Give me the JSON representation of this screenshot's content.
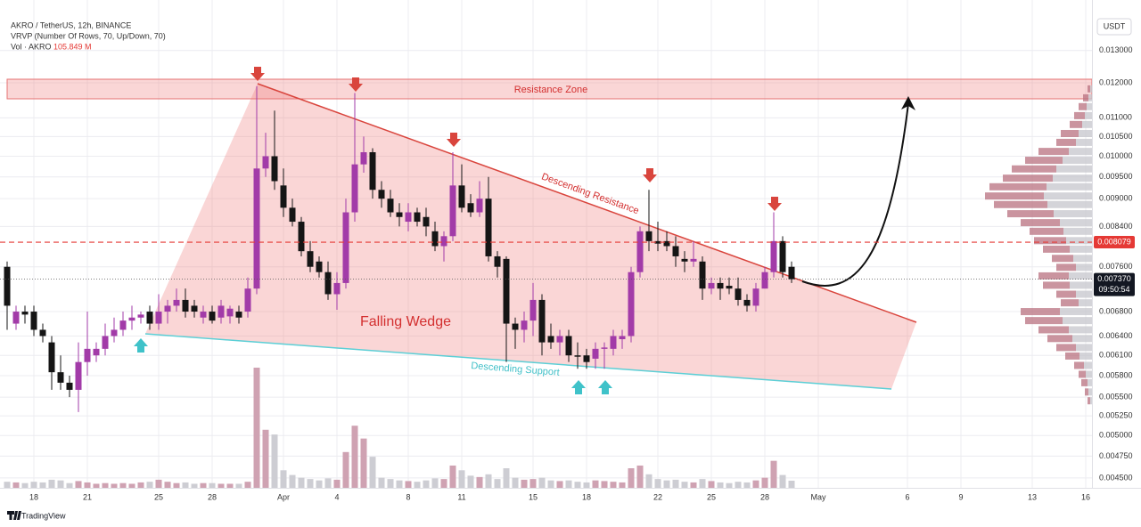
{
  "chart_data": {
    "type": "candlestick",
    "header": [
      "AKRO / TetherUS, 12h, BINANCE",
      "VRVP (Number Of Rows, 70, Up/Down, 70)"
    ],
    "volume_label": "Vol · AKRO",
    "volume_last_label": "105.849 M",
    "currency": "USDT",
    "footer": "TradingView",
    "annotations": [
      "Resistance Zone",
      "Descending Resistance",
      "Falling Wedge",
      "Descending Support"
    ],
    "log_scale": true,
    "grid": true,
    "up_color": "#a23ba8",
    "down_color": "#151515",
    "volume_up_color": "#cfa2b2",
    "volume_down_color": "#cdcdd3",
    "ylim": [
      0.00442,
      0.0141
    ],
    "yticks": [
      {
        "value": 0.013,
        "label": "0.013000"
      },
      {
        "value": 0.012,
        "label": "0.012000"
      },
      {
        "value": 0.011,
        "label": "0.011000"
      },
      {
        "value": 0.0105,
        "label": "0.010500"
      },
      {
        "value": 0.01,
        "label": "0.010000"
      },
      {
        "value": 0.0095,
        "label": "0.009500"
      },
      {
        "value": 0.009,
        "label": "0.009000"
      },
      {
        "value": 0.0084,
        "label": "0.008400"
      },
      {
        "value": 0.0076,
        "label": "0.007600"
      },
      {
        "value": 0.0068,
        "label": "0.006800"
      },
      {
        "value": 0.0064,
        "label": "0.006400"
      },
      {
        "value": 0.0061,
        "label": "0.006100"
      },
      {
        "value": 0.0058,
        "label": "0.005800"
      },
      {
        "value": 0.0055,
        "label": "0.005500"
      },
      {
        "value": 0.00525,
        "label": "0.005250"
      },
      {
        "value": 0.005,
        "label": "0.005000"
      },
      {
        "value": 0.00475,
        "label": "0.004750"
      },
      {
        "value": 0.0045,
        "label": "0.004500"
      }
    ],
    "xlim": [
      -0.8,
      121.7
    ],
    "xticks": [
      {
        "value": 3,
        "label": "18"
      },
      {
        "value": 9,
        "label": "21"
      },
      {
        "value": 17,
        "label": "25"
      },
      {
        "value": 23,
        "label": "28"
      },
      {
        "value": 31,
        "label": "Apr"
      },
      {
        "value": 37,
        "label": "4"
      },
      {
        "value": 45,
        "label": "8"
      },
      {
        "value": 51,
        "label": "11"
      },
      {
        "value": 59,
        "label": "15"
      },
      {
        "value": 65,
        "label": "18"
      },
      {
        "value": 73,
        "label": "22"
      },
      {
        "value": 79,
        "label": "25"
      },
      {
        "value": 85,
        "label": "28"
      },
      {
        "value": 91,
        "label": "May"
      },
      {
        "value": 101,
        "label": "6"
      },
      {
        "value": 107,
        "label": "9"
      },
      {
        "value": 115,
        "label": "13"
      },
      {
        "value": 121,
        "label": "16"
      }
    ],
    "open": [
      0.0076,
      0.0066,
      0.0068,
      0.0068,
      0.0065,
      0.0063,
      0.00585,
      0.0057,
      0.0056,
      0.006,
      0.0061,
      0.0062,
      0.0064,
      0.0065,
      0.00665,
      0.0067,
      0.0068,
      0.0066,
      0.0068,
      0.0069,
      0.007,
      0.0069,
      0.0067,
      0.0068,
      0.0067,
      0.00672,
      0.0068,
      0.0068,
      0.0072,
      0.0097,
      0.01,
      0.0093,
      0.0088,
      0.0085,
      0.0079,
      0.0077,
      0.0075,
      0.0071,
      0.0073,
      0.0087,
      0.0098,
      0.0101,
      0.0092,
      0.009,
      0.0087,
      0.0085,
      0.0087,
      0.0086,
      0.0083,
      0.008,
      0.0082,
      0.0093,
      0.0089,
      0.0087,
      0.009,
      0.0078,
      0.00775,
      0.0066,
      0.0065,
      0.00665,
      0.007,
      0.0064,
      0.0063,
      0.0064,
      0.0061,
      0.0061,
      0.00605,
      0.0062,
      0.0062,
      0.00635,
      0.0064,
      0.0075,
      0.0083,
      0.0081,
      0.0081,
      0.008,
      0.00775,
      0.0077,
      0.0077,
      0.0072,
      0.0073,
      0.00725,
      0.0072,
      0.007,
      0.0069,
      0.0072,
      0.0075,
      0.0081,
      0.0076
    ],
    "high": [
      0.0077,
      0.0069,
      0.0069,
      0.0069,
      0.0066,
      0.0064,
      0.0061,
      0.0058,
      0.0063,
      0.0068,
      0.0063,
      0.0066,
      0.0067,
      0.0068,
      0.0069,
      0.0068,
      0.0069,
      0.0071,
      0.007,
      0.0072,
      0.0072,
      0.007,
      0.0069,
      0.0069,
      0.007,
      0.0069,
      0.0069,
      0.0074,
      0.0119,
      0.0106,
      0.0112,
      0.0097,
      0.009,
      0.0086,
      0.0081,
      0.0078,
      0.0077,
      0.0075,
      0.009,
      0.0117,
      0.0105,
      0.0102,
      0.0094,
      0.0092,
      0.0089,
      0.0089,
      0.0088,
      0.0088,
      0.0085,
      0.0083,
      0.0101,
      0.0098,
      0.0091,
      0.0094,
      0.0095,
      0.0079,
      0.0078,
      0.0067,
      0.0068,
      0.0073,
      0.0071,
      0.0066,
      0.0065,
      0.0065,
      0.0063,
      0.0062,
      0.0063,
      0.0063,
      0.0065,
      0.0065,
      0.0076,
      0.0084,
      0.0092,
      0.0085,
      0.0083,
      0.0082,
      0.0079,
      0.0081,
      0.0078,
      0.0074,
      0.0074,
      0.0074,
      0.0074,
      0.0071,
      0.0073,
      0.0076,
      0.0087,
      0.0082,
      0.0077
    ],
    "low": [
      0.0065,
      0.0065,
      0.0066,
      0.0064,
      0.0063,
      0.0056,
      0.0056,
      0.0055,
      0.0053,
      0.0058,
      0.006,
      0.0061,
      0.0063,
      0.0064,
      0.0065,
      0.0066,
      0.0065,
      0.0065,
      0.0066,
      0.0068,
      0.0067,
      0.0067,
      0.0066,
      0.0066,
      0.0066,
      0.0066,
      0.0066,
      0.0067,
      0.0071,
      0.0095,
      0.0092,
      0.0086,
      0.0084,
      0.0078,
      0.0075,
      0.0074,
      0.007,
      0.00683,
      0.0072,
      0.0085,
      0.0096,
      0.009,
      0.0088,
      0.0086,
      0.0084,
      0.0083,
      0.0084,
      0.0082,
      0.0079,
      0.0077,
      0.0081,
      0.0087,
      0.0086,
      0.0086,
      0.0077,
      0.0074,
      0.006,
      0.0062,
      0.0063,
      0.0064,
      0.0061,
      0.0062,
      0.0061,
      0.006,
      0.0059,
      0.0059,
      0.0059,
      0.0059,
      0.0061,
      0.0062,
      0.0063,
      0.0074,
      0.0079,
      0.0079,
      0.0079,
      0.0076,
      0.0075,
      0.0076,
      0.007,
      0.0071,
      0.007,
      0.0071,
      0.0069,
      0.0068,
      0.0068,
      0.0072,
      0.0074,
      0.0074,
      0.0073
    ],
    "close": [
      0.0069,
      0.0068,
      0.00675,
      0.0065,
      0.0064,
      0.00585,
      0.0057,
      0.0056,
      0.006,
      0.0062,
      0.0062,
      0.0064,
      0.0065,
      0.00665,
      0.0067,
      0.00675,
      0.0066,
      0.0068,
      0.0069,
      0.007,
      0.0068,
      0.0068,
      0.0068,
      0.00665,
      0.0069,
      0.00685,
      0.0067,
      0.0072,
      0.0097,
      0.01,
      0.0094,
      0.0088,
      0.0085,
      0.0079,
      0.0076,
      0.0075,
      0.0071,
      0.0073,
      0.0087,
      0.0098,
      0.0101,
      0.0092,
      0.009,
      0.0087,
      0.0086,
      0.0087,
      0.0085,
      0.0084,
      0.008,
      0.0082,
      0.0093,
      0.0088,
      0.0087,
      0.009,
      0.0078,
      0.0076,
      0.0066,
      0.0065,
      0.00665,
      0.007,
      0.0063,
      0.0063,
      0.0064,
      0.0061,
      0.00608,
      0.006,
      0.0062,
      0.00622,
      0.0064,
      0.0064,
      0.0075,
      0.0083,
      0.0081,
      0.00805,
      0.008,
      0.0078,
      0.0077,
      0.00775,
      0.0072,
      0.0073,
      0.0072,
      0.0072,
      0.007,
      0.0069,
      0.0072,
      0.0075,
      0.0081,
      0.0075,
      0.00737
    ],
    "volume": [
      90,
      80,
      70,
      90,
      80,
      120,
      110,
      70,
      100,
      80,
      60,
      70,
      60,
      70,
      60,
      80,
      90,
      120,
      90,
      70,
      80,
      60,
      70,
      70,
      60,
      60,
      60,
      90,
      1780,
      860,
      790,
      260,
      190,
      150,
      130,
      110,
      140,
      120,
      530,
      920,
      730,
      460,
      150,
      130,
      110,
      100,
      90,
      110,
      140,
      130,
      330,
      260,
      180,
      160,
      200,
      130,
      290,
      150,
      120,
      130,
      150,
      110,
      100,
      110,
      90,
      80,
      110,
      100,
      90,
      80,
      290,
      330,
      200,
      130,
      110,
      120,
      90,
      80,
      130,
      100,
      80,
      70,
      90,
      80,
      110,
      150,
      400,
      190,
      105.849
    ],
    "price_line": {
      "value": 0.008079,
      "label": "0.008079",
      "color": "#e53935"
    },
    "last_price": {
      "value": 0.00737,
      "label": "0.007370",
      "countdown": "09:50:54"
    },
    "volume_profile": {
      "prices": [
        0.01182,
        0.01156,
        0.01131,
        0.01106,
        0.01082,
        0.01058,
        0.01035,
        0.01012,
        0.0099,
        0.00969,
        0.00947,
        0.00927,
        0.00906,
        0.00887,
        0.00867,
        0.00848,
        0.0083,
        0.00811,
        0.00794,
        0.00776,
        0.00759,
        0.00743,
        0.00726,
        0.0071,
        0.00695,
        0.0068,
        0.00665,
        0.0065,
        0.00636,
        0.00622,
        0.00609,
        0.00595,
        0.00582,
        0.0057,
        0.00557,
        0.00545
      ],
      "up": [
        3,
        6,
        9,
        12,
        14,
        20,
        22,
        34,
        42,
        50,
        56,
        64,
        66,
        60,
        52,
        44,
        38,
        36,
        30,
        24,
        22,
        34,
        30,
        22,
        20,
        44,
        42,
        34,
        28,
        22,
        16,
        11,
        8,
        7,
        4,
        3
      ],
      "down": [
        2,
        4,
        6,
        8,
        11,
        15,
        18,
        26,
        33,
        40,
        44,
        51,
        54,
        50,
        43,
        36,
        32,
        29,
        25,
        21,
        18,
        26,
        25,
        18,
        15,
        36,
        33,
        26,
        22,
        18,
        14,
        9,
        7,
        5,
        4,
        2
      ],
      "up_color": "#b8707f",
      "down_color": "#c6c6cc"
    }
  }
}
